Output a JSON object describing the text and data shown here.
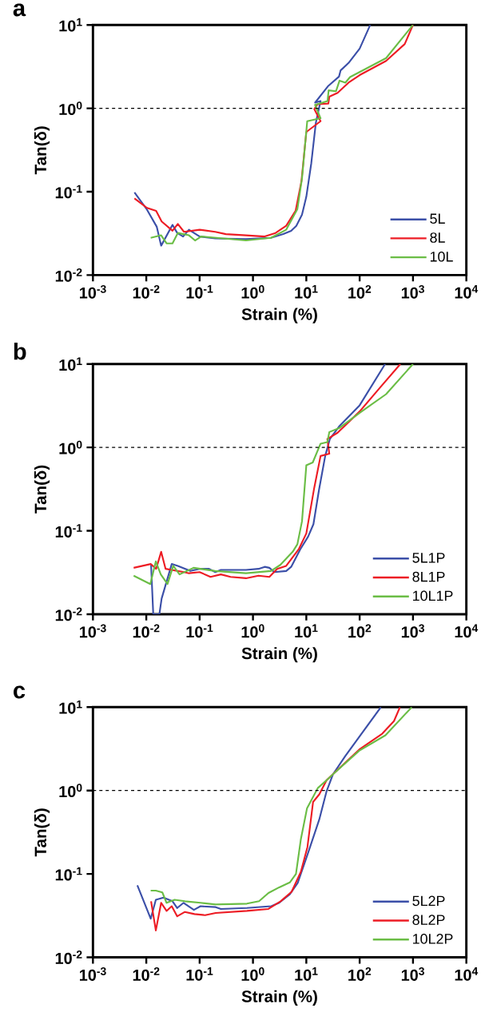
{
  "chart_data": [
    {
      "type": "line",
      "title": "a",
      "xlabel": "Strain (%)",
      "ylabel": "Tan(δ)",
      "log": "xy",
      "legend": "bottom right",
      "marker": "none",
      "line_style": "solid",
      "xlim": [
        0.001,
        10000
      ],
      "ylim": [
        0.01,
        10
      ],
      "xticks": [
        {
          "value": 0.001,
          "label": "10$^{-3}$"
        },
        {
          "value": 0.01,
          "label": "10$^{-2}$"
        },
        {
          "value": 0.1,
          "label": "10$^{-1}$"
        },
        {
          "value": 1,
          "label": "10$^{0}$"
        },
        {
          "value": 10,
          "label": "10$^{1}$"
        },
        {
          "value": 100,
          "label": "10$^{2}$"
        },
        {
          "value": 1000,
          "label": "10$^{3}$"
        },
        {
          "value": 10000,
          "label": "10$^{4}$"
        }
      ],
      "yticks": [
        {
          "value": 0.01,
          "label": "10$^{-2}$"
        },
        {
          "value": 0.1,
          "label": "10$^{-1}$"
        },
        {
          "value": 1,
          "label": "10$^{0}$"
        },
        {
          "value": 10,
          "label": "10$^{1}$"
        }
      ],
      "ref_lines": [
        {
          "axis": "y",
          "value": 1,
          "color": "#000000",
          "line_style": "dashed"
        }
      ],
      "series": [
        {
          "name": "5L",
          "color": "#3b4fa8",
          "x": [
            0.006,
            0.0103,
            0.0157,
            0.019,
            0.031,
            0.038,
            0.049,
            0.063,
            0.1,
            0.196,
            0.74,
            2.17,
            3.7,
            5.2,
            6.5,
            8.3,
            10,
            12.4,
            15.1,
            18.5,
            14.6,
            25.9,
            41,
            44,
            62,
            100,
            158
          ],
          "values": [
            0.098,
            0.061,
            0.038,
            0.0225,
            0.04,
            0.032,
            0.029,
            0.035,
            0.029,
            0.0275,
            0.027,
            0.028,
            0.031,
            0.034,
            0.039,
            0.053,
            0.087,
            0.22,
            0.67,
            1.22,
            1.17,
            1.86,
            2.4,
            2.85,
            3.5,
            5.2,
            10
          ]
        },
        {
          "name": "8L",
          "color": "#ed1c24",
          "x": [
            0.006,
            0.0103,
            0.0153,
            0.0194,
            0.031,
            0.039,
            0.051,
            0.1,
            0.196,
            0.31,
            0.74,
            1.66,
            2.65,
            4.2,
            6.3,
            8.1,
            10,
            18.5,
            14.1,
            16.2,
            25.9,
            27,
            38.6,
            62,
            100,
            313,
            700,
            1000
          ],
          "values": [
            0.083,
            0.064,
            0.059,
            0.044,
            0.034,
            0.041,
            0.033,
            0.035,
            0.033,
            0.031,
            0.03,
            0.029,
            0.032,
            0.039,
            0.059,
            0.133,
            0.52,
            0.7,
            0.98,
            1.12,
            1.14,
            1.38,
            1.53,
            2.03,
            2.5,
            3.7,
            5.9,
            10
          ]
        },
        {
          "name": "10L",
          "color": "#6abd45",
          "x": [
            0.0121,
            0.019,
            0.024,
            0.031,
            0.039,
            0.063,
            0.082,
            0.107,
            0.74,
            2.17,
            4.2,
            6.8,
            8.3,
            10.4,
            18.5,
            14.6,
            25,
            26.2,
            36,
            42,
            54,
            66,
            313,
            1000
          ],
          "values": [
            0.028,
            0.03,
            0.024,
            0.024,
            0.032,
            0.03,
            0.026,
            0.029,
            0.026,
            0.028,
            0.035,
            0.062,
            0.144,
            0.7,
            0.76,
            1.1,
            1.22,
            1.64,
            1.6,
            2.15,
            2.03,
            2.37,
            4.0,
            10
          ]
        }
      ]
    },
    {
      "type": "line",
      "title": "b",
      "xlabel": "Strain (%)",
      "ylabel": "Tan(δ)",
      "log": "xy",
      "legend": "bottom right",
      "marker": "none",
      "line_style": "solid",
      "xlim": [
        0.001,
        10000
      ],
      "ylim": [
        0.01,
        10
      ],
      "xticks": [
        {
          "value": 0.001,
          "label": "10$^{-3}$"
        },
        {
          "value": 0.01,
          "label": "10$^{-2}$"
        },
        {
          "value": 0.1,
          "label": "10$^{-1}$"
        },
        {
          "value": 1,
          "label": "10$^{0}$"
        },
        {
          "value": 10,
          "label": "10$^{1}$"
        },
        {
          "value": 100,
          "label": "10$^{2}$"
        },
        {
          "value": 1000,
          "label": "10$^{3}$"
        },
        {
          "value": 10000,
          "label": "10$^{4}$"
        }
      ],
      "yticks": [
        {
          "value": 0.01,
          "label": "10$^{-2}$"
        },
        {
          "value": 0.1,
          "label": "10$^{-1}$"
        },
        {
          "value": 1,
          "label": "10$^{0}$"
        },
        {
          "value": 10,
          "label": "10$^{1}$"
        }
      ],
      "ref_lines": [
        {
          "axis": "y",
          "value": 1,
          "color": "#000000",
          "line_style": "dashed"
        }
      ],
      "series": [
        {
          "name": "5L1P",
          "color": "#3b4fa8",
          "x": [
            0.0123,
            0.0135,
            0.0176,
            0.0194,
            0.03,
            0.039,
            0.067,
            0.1,
            0.15,
            0.196,
            0.25,
            0.74,
            1.27,
            1.66,
            2.03,
            2.5,
            4.2,
            5.2,
            7.7,
            10.8,
            13.6,
            17.3,
            22.6,
            27.6,
            41,
            100,
            300
          ],
          "values": [
            0.039,
            0.01,
            0.01,
            0.0154,
            0.04,
            0.038,
            0.033,
            0.035,
            0.035,
            0.032,
            0.034,
            0.034,
            0.035,
            0.037,
            0.036,
            0.032,
            0.033,
            0.037,
            0.06,
            0.085,
            0.12,
            0.31,
            0.79,
            1.26,
            1.78,
            3.2,
            10
          ]
        },
        {
          "name": "8L1P",
          "color": "#ed1c24",
          "x": [
            0.0058,
            0.0121,
            0.0153,
            0.019,
            0.023,
            0.051,
            0.063,
            0.1,
            0.16,
            0.25,
            0.38,
            0.74,
            1.27,
            2.03,
            2.84,
            4.2,
            7.2,
            10,
            14.1,
            18.5,
            27,
            24.8,
            38.6,
            100,
            240,
            580
          ],
          "values": [
            0.036,
            0.04,
            0.035,
            0.056,
            0.035,
            0.032,
            0.031,
            0.032,
            0.028,
            0.03,
            0.028,
            0.027,
            0.029,
            0.028,
            0.035,
            0.038,
            0.06,
            0.093,
            0.33,
            0.79,
            0.84,
            1.26,
            1.5,
            2.7,
            5.2,
            10
          ]
        },
        {
          "name": "10L1P",
          "color": "#6abd45",
          "x": [
            0.0058,
            0.0119,
            0.0151,
            0.0187,
            0.025,
            0.032,
            0.042,
            0.077,
            0.196,
            0.74,
            2.17,
            3.25,
            5.55,
            6.8,
            8.3,
            10,
            13.2,
            18.5,
            24.8,
            27,
            41,
            100,
            313,
            1000
          ],
          "values": [
            0.029,
            0.023,
            0.043,
            0.03,
            0.023,
            0.038,
            0.03,
            0.036,
            0.033,
            0.031,
            0.033,
            0.039,
            0.056,
            0.069,
            0.13,
            0.61,
            0.66,
            1.11,
            1.16,
            1.53,
            1.7,
            2.6,
            4.35,
            10
          ]
        }
      ]
    },
    {
      "type": "line",
      "title": "c",
      "xlabel": "Strain (%)",
      "ylabel": "Tan(δ)",
      "log": "xy",
      "legend": "bottom right",
      "marker": "none",
      "line_style": "solid",
      "xlim": [
        0.001,
        10000
      ],
      "ylim": [
        0.01,
        10
      ],
      "xticks": [
        {
          "value": 0.001,
          "label": "10$^{-3}$"
        },
        {
          "value": 0.01,
          "label": "10$^{-2}$"
        },
        {
          "value": 0.1,
          "label": "10$^{-1}$"
        },
        {
          "value": 1,
          "label": "10$^{0}$"
        },
        {
          "value": 10,
          "label": "10$^{1}$"
        },
        {
          "value": 100,
          "label": "10$^{2}$"
        },
        {
          "value": 1000,
          "label": "10$^{3}$"
        },
        {
          "value": 10000,
          "label": "10$^{4}$"
        }
      ],
      "yticks": [
        {
          "value": 0.01,
          "label": "10$^{-2}$"
        },
        {
          "value": 0.1,
          "label": "10$^{-1}$"
        },
        {
          "value": 1,
          "label": "10$^{0}$"
        },
        {
          "value": 10,
          "label": "10$^{1}$"
        }
      ],
      "ref_lines": [
        {
          "axis": "y",
          "value": 1,
          "color": "#000000",
          "line_style": "dashed"
        }
      ],
      "series": [
        {
          "name": "5L2P",
          "color": "#3b4fa8",
          "x": [
            0.0068,
            0.0121,
            0.0151,
            0.021,
            0.031,
            0.038,
            0.05,
            0.078,
            0.104,
            0.2,
            0.25,
            0.77,
            2.2,
            3.1,
            4.9,
            6.9,
            11,
            17.5,
            24,
            31.7,
            54,
            98,
            250
          ],
          "values": [
            0.073,
            0.029,
            0.049,
            0.052,
            0.047,
            0.039,
            0.045,
            0.037,
            0.041,
            0.04,
            0.038,
            0.039,
            0.041,
            0.045,
            0.057,
            0.078,
            0.185,
            0.45,
            0.98,
            1.57,
            2.6,
            4.4,
            10
          ]
        },
        {
          "name": "8L2P",
          "color": "#ed1c24",
          "x": [
            0.0123,
            0.0151,
            0.019,
            0.024,
            0.03,
            0.038,
            0.053,
            0.08,
            0.127,
            0.2,
            0.77,
            1.95,
            3.3,
            5.3,
            7.9,
            10.5,
            13.4,
            17.5,
            24,
            34,
            98,
            265,
            440,
            570
          ],
          "values": [
            0.047,
            0.021,
            0.045,
            0.036,
            0.041,
            0.031,
            0.035,
            0.033,
            0.032,
            0.034,
            0.036,
            0.038,
            0.047,
            0.061,
            0.106,
            0.21,
            0.73,
            0.9,
            1.33,
            1.64,
            3.1,
            4.8,
            6.8,
            10
          ]
        },
        {
          "name": "10L2P",
          "color": "#6abd45",
          "x": [
            0.0121,
            0.0151,
            0.02,
            0.024,
            0.034,
            0.053,
            0.104,
            0.2,
            0.77,
            1.3,
            1.95,
            3.1,
            4.9,
            6.4,
            7.9,
            10.3,
            16.4,
            24,
            31.7,
            98,
            305,
            950
          ],
          "values": [
            0.063,
            0.063,
            0.06,
            0.045,
            0.049,
            0.047,
            0.045,
            0.043,
            0.044,
            0.047,
            0.059,
            0.069,
            0.079,
            0.1,
            0.26,
            0.61,
            1.07,
            1.33,
            1.57,
            3.0,
            4.6,
            10
          ]
        }
      ]
    }
  ]
}
